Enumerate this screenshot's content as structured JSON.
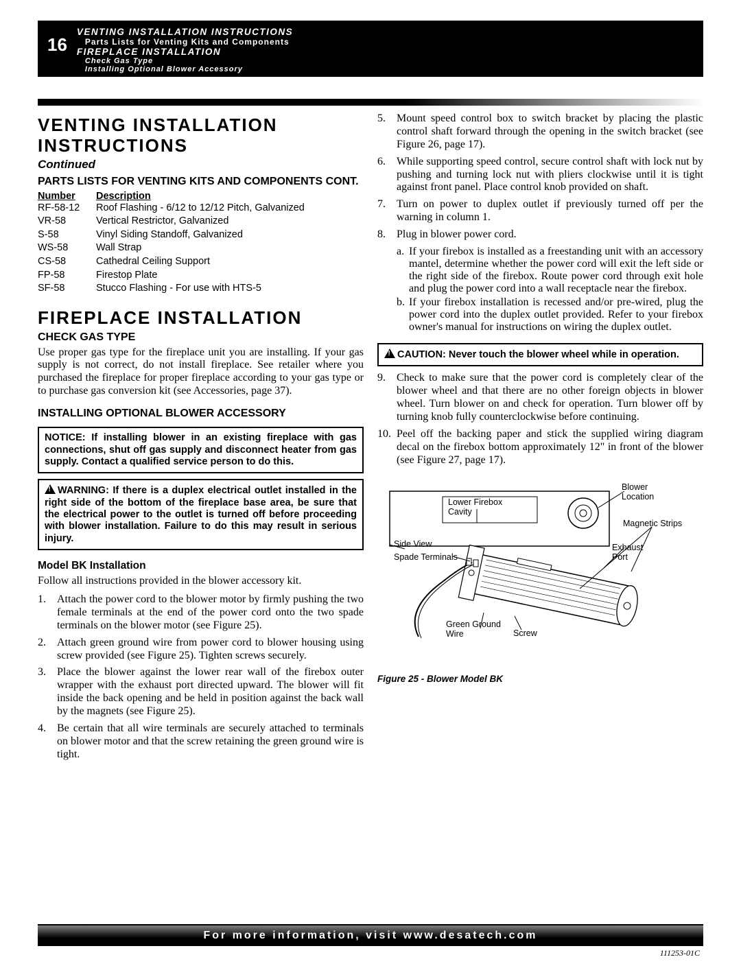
{
  "page_number": "16",
  "header": {
    "line1": "VENTING INSTALLATION INSTRUCTIONS",
    "line2": "Parts Lists for Venting Kits and Components",
    "line3": "FIREPLACE INSTALLATION",
    "line4": "Check Gas Type",
    "line5": "Installing Optional Blower Accessory"
  },
  "col1": {
    "h1": "VENTING INSTALLATION INSTRUCTIONS",
    "continued": "Continued",
    "h2_parts": "PARTS LISTS FOR VENTING KITS AND COMPONENTS CONT.",
    "parts_header_num": "Number",
    "parts_header_desc": "Description",
    "parts": [
      {
        "n": "RF-58-12",
        "d": "Roof Flashing - 6/12 to 12/12 Pitch, Galvanized"
      },
      {
        "n": "VR-58",
        "d": "Vertical Restrictor, Galvanized"
      },
      {
        "n": "S-58",
        "d": "Vinyl Siding Standoff, Galvanized"
      },
      {
        "n": "WS-58",
        "d": "Wall Strap"
      },
      {
        "n": "CS-58",
        "d": "Cathedral Ceiling Support"
      },
      {
        "n": "FP-58",
        "d": "Firestop Plate"
      },
      {
        "n": "SF-58",
        "d": "Stucco Flashing - For use with HTS-5"
      }
    ],
    "h1b": "FIREPLACE INSTALLATION",
    "h2_check": "CHECK GAS TYPE",
    "check_text": "Use proper gas type for the fireplace unit you are installing. If your gas supply is not correct, do not install fireplace. See retailer where you purchased the fireplace for proper fireplace according to your gas type or to purchase gas conversion kit (see Accessories, page 37).",
    "h2_blower": "INSTALLING OPTIONAL BLOWER ACCESSORY",
    "notice": "NOTICE: If installing blower in an existing fireplace with gas connections, shut off gas supply and disconnect heater from gas supply. Contact a qualified service person to do this.",
    "warning": "WARNING: If there is a duplex electrical outlet installed in the right side of the bottom of the fireplace base area, be sure that the electrical power to the outlet is turned off before proceeding with blower installation. Failure to do this may result in serious injury.",
    "h3_model": "Model BK Installation",
    "follow": "Follow all instructions provided in the blower accessory kit.",
    "steps": [
      "Attach the power cord to the blower motor by firmly pushing the two female terminals at the end of the power cord onto the two spade terminals on the blower motor (see Figure 25).",
      "Attach green ground wire from power cord to blower housing using screw provided (see Figure 25). Tighten screws securely.",
      "Place the blower against the lower rear wall of the firebox outer wrapper with the exhaust port directed upward. The blower will fit inside the back opening and be held in position against the back wall by the magnets (see Figure 25).",
      "Be certain that all wire terminals are securely attached to terminals on blower motor and that the screw retaining the green ground wire is tight."
    ]
  },
  "col2": {
    "steps": [
      {
        "n": "5.",
        "t": "Mount speed control box to switch bracket by placing the plastic control shaft forward through the opening in the switch bracket (see Figure 26, page 17)."
      },
      {
        "n": "6.",
        "t": "While supporting speed control, secure control shaft with lock nut by pushing and turning lock nut with pliers clockwise until it is tight against front panel. Place control knob provided on shaft."
      },
      {
        "n": "7.",
        "t": "Turn on power to duplex outlet if previously turned off per the warning in column 1."
      },
      {
        "n": "8.",
        "t": "Plug in blower power cord."
      }
    ],
    "sub_a": "If your firebox is installed as a freestanding unit with an accessory mantel, determine whether the power cord will exit the left side or the right side of the firebox. Route power cord through exit hole and plug the power cord into a wall receptacle near the firebox.",
    "sub_b": "If your firebox installation is recessed and/or pre-wired, plug the power cord into the duplex outlet provided. Refer to your firebox owner's manual for instructions on wiring the duplex outlet.",
    "caution": "CAUTION: Never touch the blower wheel while in operation.",
    "steps2": [
      {
        "n": "9.",
        "t": "Check to make sure that the power cord is completely clear of the blower wheel and that there are no other foreign objects in blower wheel. Turn blower on and check for operation. Turn blower off by turning knob fully counterclockwise before continuing."
      },
      {
        "n": "10.",
        "t": "Peel off the backing paper and stick the supplied wiring diagram decal on the firebox bottom approximately 12\" in front of the blower (see Figure 27, page 17)."
      }
    ],
    "figure_caption": "Figure 25 - Blower Model BK",
    "labels": {
      "lower_firebox": "Lower Firebox Cavity",
      "side_view": "Side View",
      "spade": "Spade Terminals",
      "green_wire": "Green Ground Wire",
      "screw": "Screw",
      "blower_loc": "Blower Location",
      "magnetic": "Magnetic Strips",
      "exhaust": "Exhaust Port"
    }
  },
  "footer": "For more information, visit www.desatech.com",
  "doc_id": "111253-01C"
}
